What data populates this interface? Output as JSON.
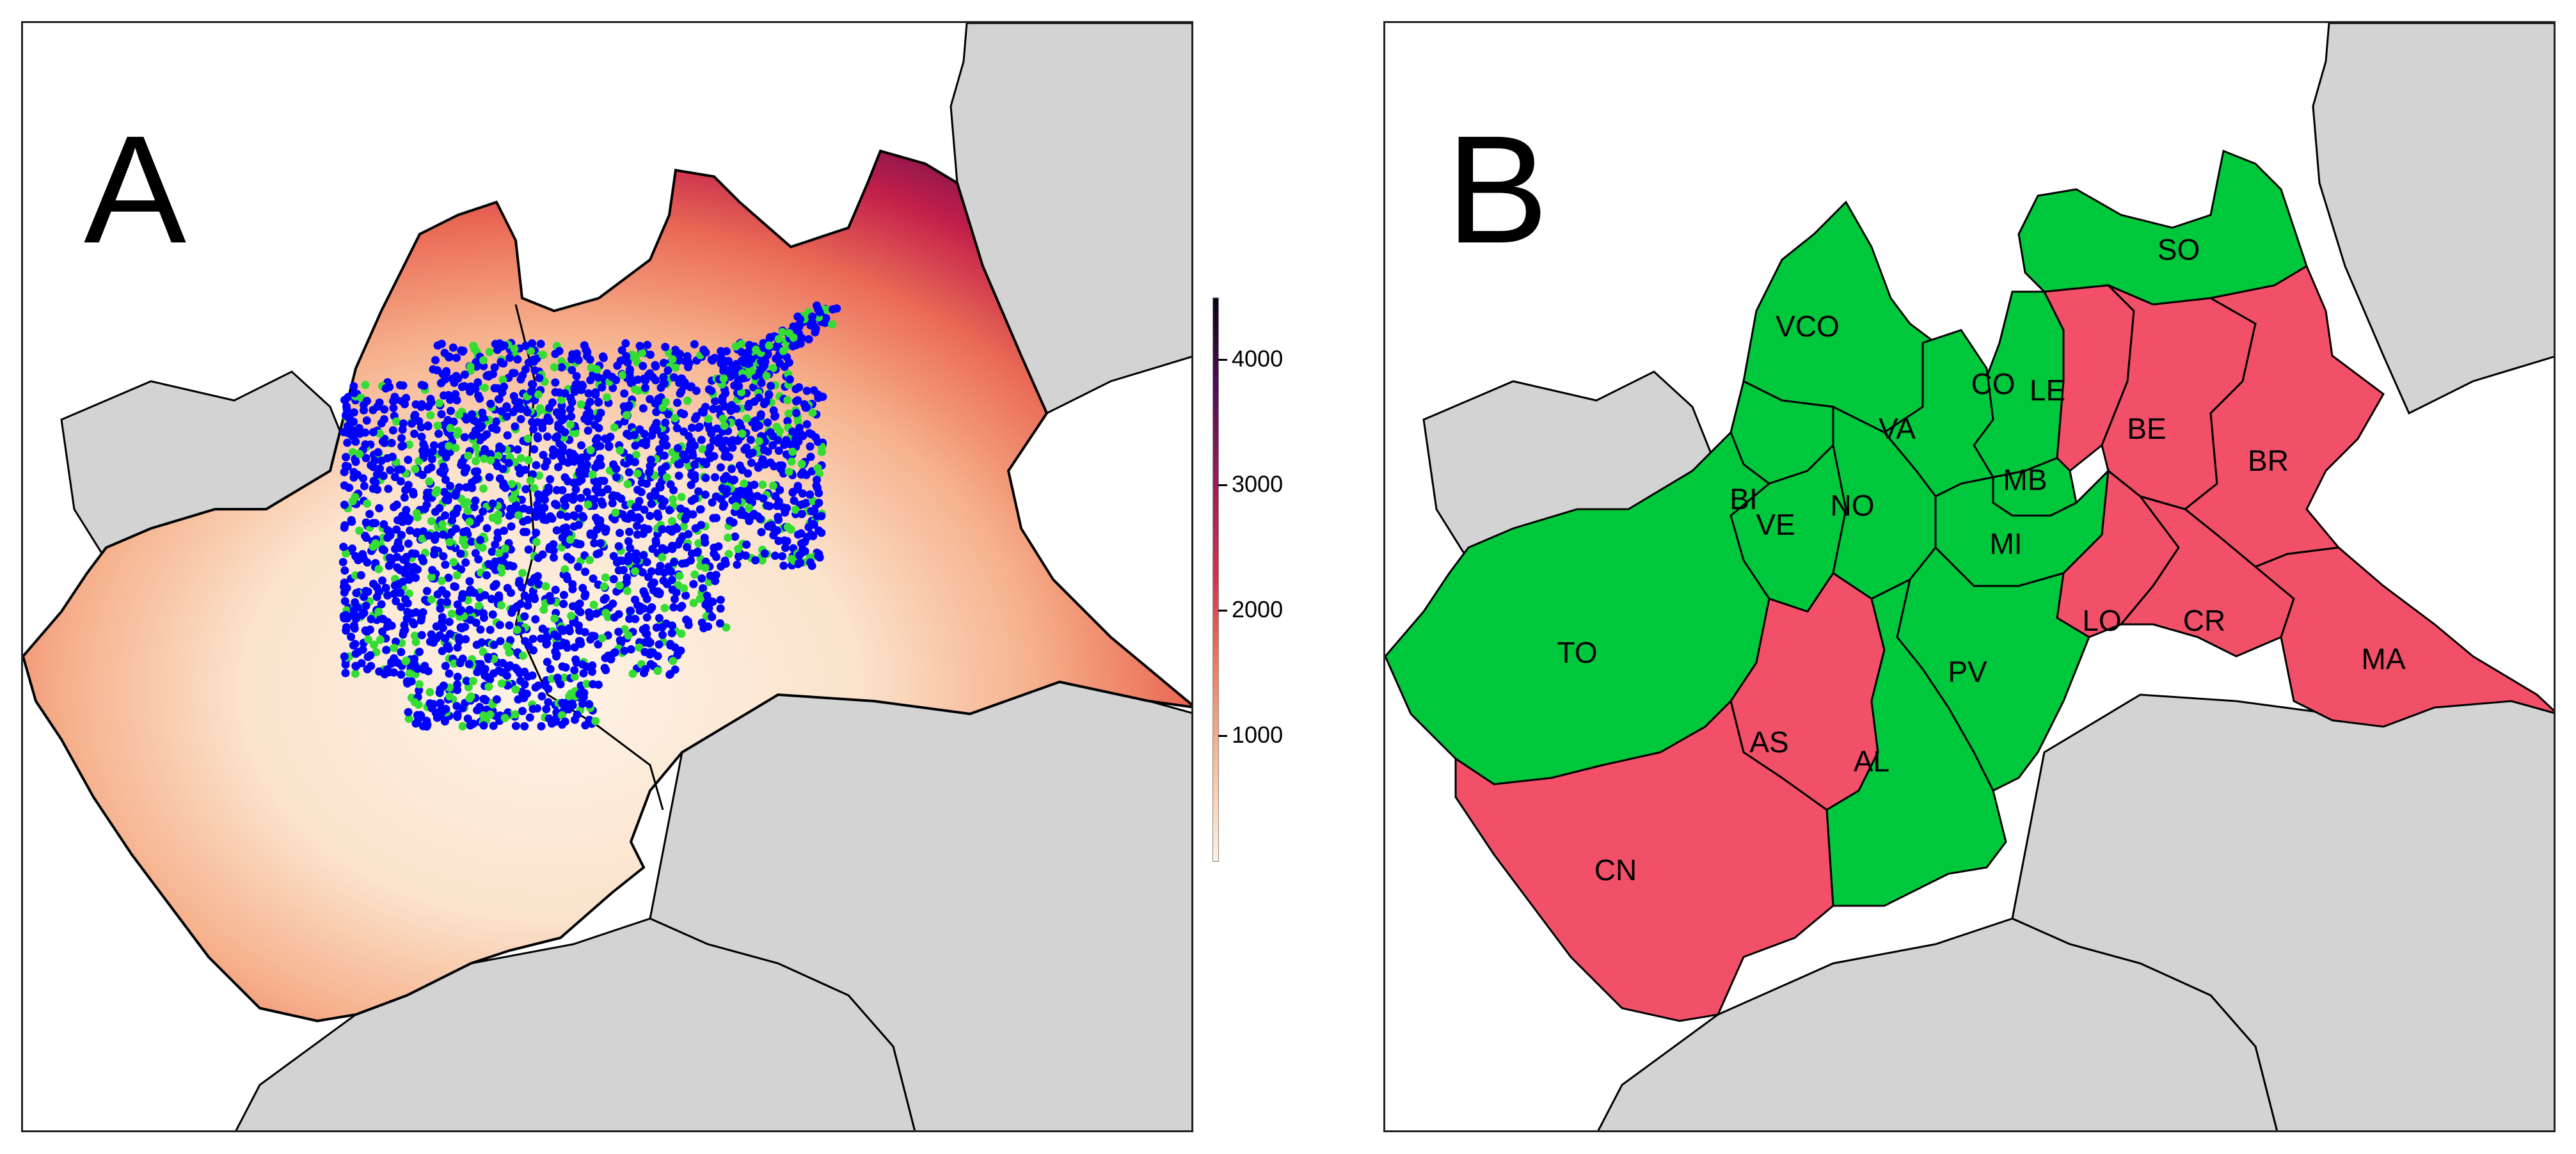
{
  "panel_a": {
    "letter": "A",
    "legend": {
      "ticks": [
        "4000",
        "3000",
        "2000",
        "1000"
      ],
      "tick_values": [
        4000,
        3000,
        2000,
        1000
      ],
      "min": 0,
      "max": 4500
    },
    "point_colors": [
      "#0000ff",
      "#33dd33"
    ]
  },
  "panel_b": {
    "letter": "B",
    "colors": {
      "green": "#00c83c",
      "red": "#f25068",
      "neighbor": "#d3d3d3"
    },
    "provinces": [
      {
        "code": "SO",
        "color": "green"
      },
      {
        "code": "VCO",
        "color": "green"
      },
      {
        "code": "CO",
        "color": "green"
      },
      {
        "code": "LE",
        "color": "red"
      },
      {
        "code": "BE",
        "color": "red"
      },
      {
        "code": "BR",
        "color": "red"
      },
      {
        "code": "VA",
        "color": "green"
      },
      {
        "code": "MB",
        "color": "green"
      },
      {
        "code": "BI",
        "color": "green"
      },
      {
        "code": "VE",
        "color": "green"
      },
      {
        "code": "NO",
        "color": "green"
      },
      {
        "code": "MI",
        "color": "green"
      },
      {
        "code": "TO",
        "color": "green"
      },
      {
        "code": "LO",
        "color": "red"
      },
      {
        "code": "CR",
        "color": "red"
      },
      {
        "code": "MA",
        "color": "red"
      },
      {
        "code": "PV",
        "color": "green"
      },
      {
        "code": "AS",
        "color": "red"
      },
      {
        "code": "AL",
        "color": "green"
      },
      {
        "code": "CN",
        "color": "red"
      }
    ]
  }
}
